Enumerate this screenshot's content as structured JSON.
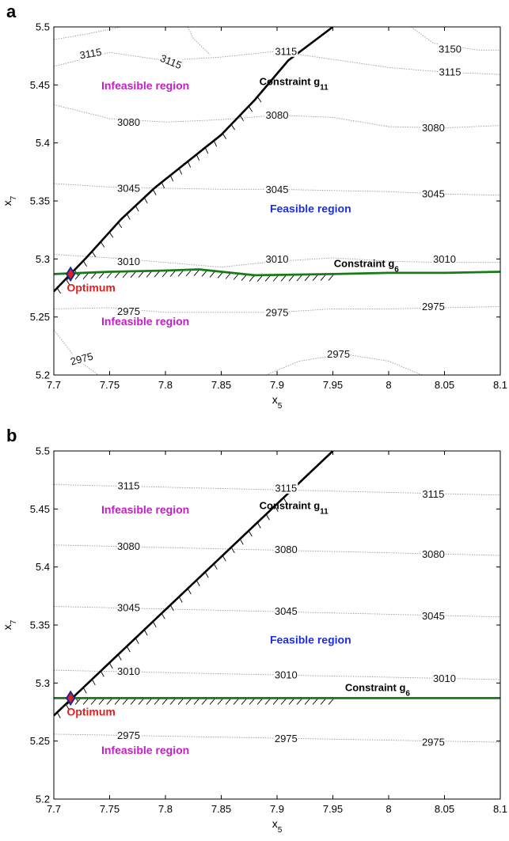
{
  "colors": {
    "g11_line": "#000000",
    "g6_line": "#1a7a1a",
    "contour": "#9a9a9a",
    "infeasible_text": "#c020c0",
    "feasible_text": "#1a2ee0",
    "optimum_text": "#e02020",
    "optimum_marker_fill": "#e02020",
    "optimum_marker_stroke": "#1a2a90"
  },
  "chart_data": [
    {
      "type": "line",
      "panel_label": "a",
      "xlabel": "x",
      "xlabel_sub": "5",
      "ylabel": "x",
      "ylabel_sub": "7",
      "xlim": [
        7.7,
        8.1
      ],
      "ylim": [
        5.2,
        5.5
      ],
      "xticks": [
        7.7,
        7.75,
        7.8,
        7.85,
        7.9,
        7.95,
        8,
        8.05,
        8.1
      ],
      "xtick_labels": [
        "7.7",
        "7.75",
        "7.8",
        "7.85",
        "7.9",
        "7.95",
        "8",
        "8.05",
        "8.1"
      ],
      "yticks": [
        5.2,
        5.25,
        5.3,
        5.35,
        5.4,
        5.45,
        5.5
      ],
      "ytick_labels": [
        "5.2",
        "5.25",
        "5.3",
        "5.35",
        "5.4",
        "5.45",
        "5.5"
      ],
      "grid": false,
      "contours": [
        {
          "level": "3115",
          "points": [
            [
              7.7,
              5.466
            ],
            [
              7.75,
              5.478
            ],
            [
              7.8,
              5.471
            ],
            [
              7.85,
              5.474
            ],
            [
              7.9,
              5.479
            ],
            [
              7.95,
              5.472
            ],
            [
              8.0,
              5.465
            ],
            [
              8.05,
              5.461
            ],
            [
              8.1,
              5.459
            ]
          ]
        },
        {
          "level": "3080",
          "points": [
            [
              7.7,
              5.433
            ],
            [
              7.75,
              5.421
            ],
            [
              7.8,
              5.418
            ],
            [
              7.85,
              5.42
            ],
            [
              7.9,
              5.424
            ],
            [
              7.95,
              5.422
            ],
            [
              8.0,
              5.414
            ],
            [
              8.05,
              5.413
            ],
            [
              8.1,
              5.415
            ]
          ]
        },
        {
          "level": "3045",
          "points": [
            [
              7.7,
              5.365
            ],
            [
              7.75,
              5.362
            ],
            [
              7.8,
              5.361
            ],
            [
              7.85,
              5.36
            ],
            [
              7.9,
              5.36
            ],
            [
              7.95,
              5.359
            ],
            [
              8.0,
              5.358
            ],
            [
              8.05,
              5.356
            ],
            [
              8.1,
              5.355
            ]
          ]
        },
        {
          "level": "3010",
          "points": [
            [
              7.7,
              5.304
            ],
            [
              7.75,
              5.301
            ],
            [
              7.8,
              5.297
            ],
            [
              7.85,
              5.293
            ],
            [
              7.9,
              5.298
            ],
            [
              7.95,
              5.301
            ],
            [
              8.0,
              5.298
            ],
            [
              8.05,
              5.297
            ],
            [
              8.1,
              5.297
            ]
          ]
        },
        {
          "level": "2975",
          "points": [
            [
              7.7,
              5.257
            ],
            [
              7.75,
              5.258
            ],
            [
              7.8,
              5.254
            ],
            [
              7.85,
              5.254
            ],
            [
              7.9,
              5.254
            ],
            [
              7.95,
              5.257
            ],
            [
              8.0,
              5.257
            ],
            [
              8.05,
              5.258
            ],
            [
              8.1,
              5.259
            ]
          ]
        },
        {
          "level": "2975",
          "points": [
            [
              7.7,
              5.239
            ],
            [
              7.72,
              5.214
            ],
            [
              7.74,
              5.2
            ]
          ]
        },
        {
          "level": "2975",
          "points": [
            [
              7.89,
              5.2
            ],
            [
              7.92,
              5.212
            ],
            [
              7.96,
              5.218
            ],
            [
              8.0,
              5.212
            ],
            [
              8.03,
              5.2
            ]
          ]
        },
        {
          "level": "3115",
          "points": [
            [
              7.7,
              5.489
            ],
            [
              7.73,
              5.494
            ],
            [
              7.76,
              5.5
            ]
          ]
        },
        {
          "level": "3150",
          "points": [
            [
              8.02,
              5.5
            ],
            [
              8.04,
              5.486
            ],
            [
              8.08,
              5.48
            ],
            [
              8.1,
              5.48
            ]
          ]
        },
        {
          "level": "3115",
          "points": [
            [
              7.82,
              5.5
            ],
            [
              7.825,
              5.49
            ],
            [
              7.84,
              5.476
            ]
          ]
        }
      ],
      "contour_labels": [
        {
          "text": "3115",
          "x": 7.733,
          "y": 5.477,
          "angle": -10
        },
        {
          "text": "3115",
          "x": 7.805,
          "y": 5.47,
          "angle": 22
        },
        {
          "text": "3115",
          "x": 7.908,
          "y": 5.479,
          "angle": 0
        },
        {
          "text": "3150",
          "x": 8.055,
          "y": 5.481,
          "angle": 0
        },
        {
          "text": "3115",
          "x": 8.055,
          "y": 5.461,
          "angle": 0
        },
        {
          "text": "3080",
          "x": 7.767,
          "y": 5.418,
          "angle": 0
        },
        {
          "text": "3080",
          "x": 7.9,
          "y": 5.424,
          "angle": 0
        },
        {
          "text": "3080",
          "x": 8.04,
          "y": 5.413,
          "angle": 0
        },
        {
          "text": "3045",
          "x": 7.767,
          "y": 5.361,
          "angle": 0
        },
        {
          "text": "3045",
          "x": 7.9,
          "y": 5.36,
          "angle": 0
        },
        {
          "text": "3045",
          "x": 8.04,
          "y": 5.356,
          "angle": 0
        },
        {
          "text": "3010",
          "x": 7.767,
          "y": 5.298,
          "angle": 0
        },
        {
          "text": "3010",
          "x": 7.9,
          "y": 5.3,
          "angle": 0
        },
        {
          "text": "3010",
          "x": 8.05,
          "y": 5.3,
          "angle": 0
        },
        {
          "text": "2975",
          "x": 7.767,
          "y": 5.255,
          "angle": 0
        },
        {
          "text": "2975",
          "x": 7.9,
          "y": 5.254,
          "angle": 0
        },
        {
          "text": "2975",
          "x": 8.04,
          "y": 5.259,
          "angle": 0
        },
        {
          "text": "2975",
          "x": 7.725,
          "y": 5.214,
          "angle": -15
        },
        {
          "text": "2975",
          "x": 7.955,
          "y": 5.218,
          "angle": 0
        }
      ],
      "constraint_g11": {
        "label": "Constraint g",
        "label_sub": "11",
        "label_x": 7.915,
        "label_y": 5.45,
        "points": [
          [
            7.7,
            5.272
          ],
          [
            7.73,
            5.302
          ],
          [
            7.76,
            5.334
          ],
          [
            7.79,
            5.361
          ],
          [
            7.82,
            5.384
          ],
          [
            7.85,
            5.407
          ],
          [
            7.88,
            5.437
          ],
          [
            7.91,
            5.471
          ],
          [
            7.95,
            5.5
          ]
        ],
        "hatch_until": 7.89
      },
      "constraint_g6": {
        "label": "Constraint g",
        "label_sub": "6",
        "label_x": 7.98,
        "label_y": 5.293,
        "points": [
          [
            7.7,
            5.287
          ],
          [
            7.75,
            5.289
          ],
          [
            7.8,
            5.29
          ],
          [
            7.83,
            5.291
          ],
          [
            7.88,
            5.286
          ],
          [
            7.95,
            5.287
          ],
          [
            8.0,
            5.288
          ],
          [
            8.05,
            5.288
          ],
          [
            8.1,
            5.289
          ]
        ],
        "hatch_from": 7.715,
        "hatch_until": 7.955
      },
      "optimum": {
        "label": "Optimum",
        "x": 7.715,
        "y": 5.287
      },
      "region_labels": [
        {
          "text": "Infeasible region",
          "kind": "infeasible",
          "x": 7.782,
          "y": 5.446
        },
        {
          "text": "Feasible region",
          "kind": "feasible",
          "x": 7.93,
          "y": 5.34
        },
        {
          "text": "Infeasible region",
          "kind": "infeasible",
          "x": 7.782,
          "y": 5.243
        }
      ]
    },
    {
      "type": "line",
      "panel_label": "b",
      "xlabel": "x",
      "xlabel_sub": "5",
      "ylabel": "x",
      "ylabel_sub": "7",
      "xlim": [
        7.7,
        8.1
      ],
      "ylim": [
        5.2,
        5.5
      ],
      "xticks": [
        7.7,
        7.75,
        7.8,
        7.85,
        7.9,
        7.95,
        8,
        8.05,
        8.1
      ],
      "xtick_labels": [
        "7.7",
        "7.75",
        "7.8",
        "7.85",
        "7.9",
        "7.95",
        "8",
        "8.05",
        "8.1"
      ],
      "yticks": [
        5.2,
        5.25,
        5.3,
        5.35,
        5.4,
        5.45,
        5.5
      ],
      "ytick_labels": [
        "5.2",
        "5.25",
        "5.3",
        "5.35",
        "5.4",
        "5.45",
        "5.5"
      ],
      "grid": false,
      "contours": [
        {
          "level": "3115",
          "points": [
            [
              7.7,
              5.471
            ],
            [
              8.1,
              5.462
            ]
          ]
        },
        {
          "level": "3080",
          "points": [
            [
              7.7,
              5.419
            ],
            [
              8.1,
              5.41
            ]
          ]
        },
        {
          "level": "3045",
          "points": [
            [
              7.7,
              5.366
            ],
            [
              8.1,
              5.357
            ]
          ]
        },
        {
          "level": "3010",
          "points": [
            [
              7.7,
              5.311
            ],
            [
              8.1,
              5.303
            ]
          ]
        },
        {
          "level": "2975",
          "points": [
            [
              7.7,
              5.256
            ],
            [
              8.1,
              5.249
            ]
          ]
        }
      ],
      "contour_labels": [
        {
          "text": "3115",
          "x": 7.767,
          "y": 5.47,
          "angle": 0
        },
        {
          "text": "3115",
          "x": 7.908,
          "y": 5.468,
          "angle": 0
        },
        {
          "text": "3115",
          "x": 8.04,
          "y": 5.463,
          "angle": 0
        },
        {
          "text": "3080",
          "x": 7.767,
          "y": 5.418,
          "angle": 0
        },
        {
          "text": "3080",
          "x": 7.908,
          "y": 5.415,
          "angle": 0
        },
        {
          "text": "3080",
          "x": 8.04,
          "y": 5.411,
          "angle": 0
        },
        {
          "text": "3045",
          "x": 7.767,
          "y": 5.365,
          "angle": 0
        },
        {
          "text": "3045",
          "x": 7.908,
          "y": 5.362,
          "angle": 0
        },
        {
          "text": "3045",
          "x": 8.04,
          "y": 5.358,
          "angle": 0
        },
        {
          "text": "3010",
          "x": 7.767,
          "y": 5.31,
          "angle": 0
        },
        {
          "text": "3010",
          "x": 7.908,
          "y": 5.307,
          "angle": 0
        },
        {
          "text": "3010",
          "x": 8.05,
          "y": 5.304,
          "angle": 0
        },
        {
          "text": "2975",
          "x": 7.767,
          "y": 5.255,
          "angle": 0
        },
        {
          "text": "2975",
          "x": 7.908,
          "y": 5.252,
          "angle": 0
        },
        {
          "text": "2975",
          "x": 8.04,
          "y": 5.249,
          "angle": 0
        }
      ],
      "constraint_g11": {
        "label": "Constraint g",
        "label_sub": "11",
        "label_x": 7.915,
        "label_y": 5.45,
        "points": [
          [
            7.7,
            5.272
          ],
          [
            7.95,
            5.5
          ]
        ],
        "hatch_until": 7.91
      },
      "constraint_g6": {
        "label": "Constraint g",
        "label_sub": "6",
        "label_x": 7.99,
        "label_y": 5.293,
        "points": [
          [
            7.7,
            5.287
          ],
          [
            8.1,
            5.287
          ]
        ],
        "hatch_from": 7.715,
        "hatch_until": 7.955
      },
      "optimum": {
        "label": "Optimum",
        "x": 7.715,
        "y": 5.287
      },
      "region_labels": [
        {
          "text": "Infeasible region",
          "kind": "infeasible",
          "x": 7.782,
          "y": 5.446
        },
        {
          "text": "Feasible region",
          "kind": "feasible",
          "x": 7.93,
          "y": 5.334
        },
        {
          "text": "Infeasible region",
          "kind": "infeasible",
          "x": 7.782,
          "y": 5.239
        }
      ]
    }
  ]
}
